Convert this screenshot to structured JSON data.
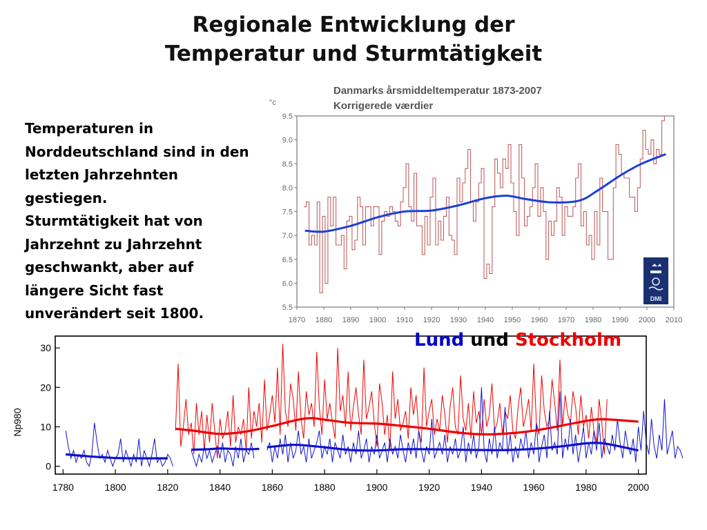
{
  "slide": {
    "title_line1": "Regionale Entwicklung der",
    "title_line2": "Temperatur und Sturmtätigkeit",
    "text_lines": [
      "Temperaturen in",
      "Norddeutschland sind in den",
      "letzten Jahrzehnten",
      "gestiegen.",
      "Sturmtätigkeit hat von",
      "Jahrzehnt zu Jahrzehnt",
      "geschwankt, aber auf",
      "längere Sicht fast",
      "unverändert seit 1800."
    ],
    "legend": {
      "part1": "Lund",
      "part2": " und ",
      "part3": "Stockholm",
      "color1": "#0000cc",
      "color3": "#ee0000"
    }
  },
  "chart_data": [
    {
      "type": "line",
      "title": "Danmarks årsmiddeltemperatur 1873-2007",
      "subtitle": "Korrigerede værdier",
      "ylabel": "°c",
      "xlim": [
        1870,
        2010
      ],
      "ylim": [
        5.5,
        9.5
      ],
      "xticks": [
        1870,
        1880,
        1890,
        1900,
        1910,
        1920,
        1930,
        1940,
        1950,
        1960,
        1970,
        1980,
        1990,
        2000,
        2010
      ],
      "yticks": [
        5.5,
        6.0,
        6.5,
        7.0,
        7.5,
        8.0,
        8.5,
        9.0,
        9.5
      ],
      "ytick_labels": [
        "5.5",
        "6.0",
        "6.5",
        "7.0",
        "7.5",
        "8.0",
        "8.5",
        "9.0",
        "9.5"
      ],
      "logo": "DMI",
      "series": [
        {
          "style": "step",
          "color": "#c06060",
          "x": [
            1873,
            1874,
            1875,
            1876,
            1877,
            1878,
            1879,
            1880,
            1881,
            1882,
            1883,
            1884,
            1885,
            1886,
            1887,
            1888,
            1889,
            1890,
            1891,
            1892,
            1893,
            1894,
            1895,
            1896,
            1897,
            1898,
            1899,
            1900,
            1901,
            1902,
            1903,
            1904,
            1905,
            1906,
            1907,
            1908,
            1909,
            1910,
            1911,
            1912,
            1913,
            1914,
            1915,
            1916,
            1917,
            1918,
            1919,
            1920,
            1921,
            1922,
            1923,
            1924,
            1925,
            1926,
            1927,
            1928,
            1929,
            1930,
            1931,
            1932,
            1933,
            1934,
            1935,
            1936,
            1937,
            1938,
            1939,
            1940,
            1941,
            1942,
            1943,
            1944,
            1945,
            1946,
            1947,
            1948,
            1949,
            1950,
            1951,
            1952,
            1953,
            1954,
            1955,
            1956,
            1957,
            1958,
            1959,
            1960,
            1961,
            1962,
            1963,
            1964,
            1965,
            1966,
            1967,
            1968,
            1969,
            1970,
            1971,
            1972,
            1973,
            1974,
            1975,
            1976,
            1977,
            1978,
            1979,
            1980,
            1981,
            1982,
            1983,
            1984,
            1985,
            1986,
            1987,
            1988,
            1989,
            1990,
            1991,
            1992,
            1993,
            1994,
            1995,
            1996,
            1997,
            1998,
            1999,
            2000,
            2001,
            2002,
            2003,
            2004,
            2005,
            2006,
            2007
          ],
          "values": [
            7.6,
            7.7,
            6.8,
            7.0,
            6.8,
            7.7,
            5.8,
            7.4,
            6.0,
            7.8,
            7.2,
            7.8,
            6.8,
            6.8,
            7.0,
            6.3,
            7.3,
            7.4,
            6.7,
            6.9,
            7.8,
            7.6,
            6.8,
            7.6,
            7.6,
            7.2,
            7.6,
            7.6,
            6.6,
            7.3,
            7.5,
            7.4,
            7.6,
            7.5,
            7.3,
            7.2,
            7.7,
            8.0,
            8.5,
            7.6,
            7.3,
            8.3,
            7.2,
            7.2,
            6.6,
            7.4,
            6.8,
            7.8,
            8.2,
            6.8,
            7.3,
            6.9,
            7.4,
            7.8,
            7.0,
            6.9,
            6.6,
            8.2,
            7.7,
            8.1,
            8.4,
            8.8,
            7.7,
            7.3,
            7.7,
            8.1,
            8.4,
            6.1,
            6.4,
            6.2,
            7.6,
            8.6,
            8.3,
            8.0,
            8.6,
            8.4,
            8.9,
            8.1,
            7.5,
            7.0,
            8.9,
            8.2,
            7.2,
            7.4,
            7.6,
            8.0,
            8.5,
            7.4,
            8.0,
            7.5,
            6.5,
            7.3,
            7.0,
            7.3,
            8.0,
            7.8,
            7.0,
            7.6,
            7.4,
            7.4,
            7.6,
            8.2,
            8.5,
            7.2,
            7.5,
            6.8,
            7.0,
            6.5,
            7.5,
            6.8,
            8.2,
            7.5,
            7.5,
            6.5,
            6.5,
            8.0,
            8.9,
            8.7,
            8.3,
            8.2,
            8.2,
            7.8,
            7.8,
            7.5,
            8.0,
            8.6,
            9.2,
            8.8,
            8.7,
            9.0,
            8.5,
            8.8,
            8.7,
            9.4,
            9.5
          ]
        },
        {
          "style": "smooth",
          "color": "#1a3fd6",
          "x": [
            1873,
            1880,
            1890,
            1900,
            1910,
            1920,
            1930,
            1940,
            1948,
            1955,
            1965,
            1975,
            1982,
            1990,
            1998,
            2007
          ],
          "values": [
            7.1,
            7.08,
            7.2,
            7.38,
            7.5,
            7.52,
            7.63,
            7.78,
            7.83,
            7.76,
            7.69,
            7.73,
            7.95,
            8.25,
            8.5,
            8.7
          ]
        }
      ]
    },
    {
      "type": "line",
      "ylabel": "Np980",
      "xlim": [
        1777,
        2003
      ],
      "ylim": [
        -2,
        33
      ],
      "xticks": [
        1780,
        1800,
        1820,
        1840,
        1860,
        1880,
        1900,
        1920,
        1940,
        1960,
        1980,
        2000
      ],
      "yticks": [
        0,
        10,
        20,
        30
      ],
      "series": [
        {
          "name": "Stockholm",
          "color": "#ee0000",
          "style": "thin",
          "start": 1823,
          "values": [
            9,
            26,
            5,
            10,
            17,
            8,
            11,
            3,
            16,
            8,
            14,
            4,
            13,
            6,
            16,
            9,
            2,
            12,
            7,
            9,
            14,
            5,
            18,
            6,
            10,
            8,
            12,
            4,
            20,
            7,
            14,
            10,
            16,
            6,
            22,
            9,
            13,
            18,
            11,
            25,
            8,
            31,
            14,
            10,
            21,
            17,
            9,
            24,
            12,
            7,
            19,
            13,
            16,
            10,
            29,
            15,
            8,
            22,
            12,
            16,
            11,
            7,
            30,
            14,
            18,
            10,
            24,
            9,
            15,
            20,
            13,
            8,
            27,
            12,
            15,
            19,
            11,
            5,
            21,
            16,
            8,
            13,
            4,
            24,
            12,
            17,
            9,
            11,
            14,
            7,
            20,
            13,
            18,
            9,
            6,
            25,
            10,
            14,
            17,
            8,
            12,
            9,
            18,
            13,
            6,
            15,
            20,
            10,
            8,
            23,
            12,
            9,
            16,
            7,
            19,
            11,
            14,
            8,
            17,
            10,
            13,
            21,
            9,
            11,
            16,
            8,
            14,
            12,
            18,
            9,
            7,
            15,
            20,
            10,
            13,
            17,
            9,
            26,
            11,
            8,
            23,
            14,
            10,
            12,
            22,
            16,
            9,
            27,
            10,
            18,
            13,
            11,
            19,
            15,
            8,
            18,
            10,
            13,
            7,
            15,
            9,
            6,
            17,
            11,
            3,
            17
          ]
        },
        {
          "name": "Lund",
          "color": "#1010cc",
          "style": "thin",
          "segments": [
            {
              "start": 1781,
              "values": [
                9,
                5,
                2,
                4,
                1,
                3,
                2,
                4,
                1,
                0,
                3,
                11,
                6,
                2,
                3,
                1,
                4,
                2,
                0,
                2,
                3,
                7,
                1,
                4,
                2,
                0,
                3,
                1,
                7,
                0,
                4,
                2,
                0,
                3,
                7,
                1,
                2,
                0,
                1,
                3,
                2,
                0
              ]
            },
            {
              "start": 1829,
              "values": [
                4,
                2,
                0,
                3,
                1,
                5,
                2,
                4,
                1,
                3,
                5,
                2,
                6,
                1,
                4,
                3,
                0,
                5,
                2,
                7,
                1,
                4,
                3,
                6,
                2
              ]
            },
            {
              "start": 1858,
              "values": [
                4,
                6,
                1,
                5,
                2,
                7,
                3,
                8,
                1,
                6,
                2,
                4,
                9,
                3,
                5,
                1,
                7,
                2,
                4,
                6,
                9,
                2,
                5,
                3,
                7,
                1,
                6,
                4,
                2,
                8,
                3,
                5,
                1,
                6,
                3,
                9,
                2,
                4,
                7,
                1,
                5,
                3,
                8,
                2,
                4,
                6,
                1,
                7,
                3,
                5,
                2,
                8,
                4,
                1,
                6,
                3,
                7,
                2,
                9,
                4,
                1,
                5,
                3,
                12,
                2,
                4,
                6,
                3,
                8,
                1,
                5,
                3,
                7,
                2,
                4,
                10,
                1,
                6,
                3,
                8,
                2,
                5,
                20,
                4,
                1,
                7,
                3,
                10,
                2,
                6,
                4,
                15,
                3,
                8,
                1,
                5,
                2,
                7,
                4,
                9,
                2,
                6,
                3,
                11,
                1,
                5,
                8,
                2,
                14,
                4,
                6,
                3,
                19,
                2,
                7,
                4,
                12,
                3,
                8,
                1,
                5,
                10,
                2,
                6,
                3,
                9,
                4,
                11,
                2,
                7,
                5,
                3,
                8,
                4,
                12,
                6,
                2,
                9,
                5,
                3,
                7,
                1,
                10,
                4,
                14,
                6,
                3,
                12,
                5,
                2,
                8,
                4,
                17,
                3,
                6,
                9,
                2,
                5,
                4,
                2
              ]
            }
          ]
        },
        {
          "name": "Stockholm smooth",
          "color": "#ee0000",
          "style": "smooth",
          "x": [
            1823,
            1830,
            1840,
            1850,
            1860,
            1870,
            1875,
            1880,
            1890,
            1900,
            1910,
            1920,
            1930,
            1940,
            1950,
            1960,
            1970,
            1980,
            1985,
            1990,
            2000
          ],
          "values": [
            9.5,
            9.0,
            8.2,
            8.8,
            10.2,
            11.8,
            12.2,
            11.8,
            11.0,
            10.8,
            10.2,
            9.5,
            8.6,
            8.1,
            8.3,
            9.0,
            10.2,
            11.5,
            11.9,
            11.8,
            11.3
          ]
        },
        {
          "name": "Lund smooth",
          "color": "#1010cc",
          "style": "smooth",
          "segments": [
            {
              "x": [
                1781,
                1790,
                1800,
                1810,
                1820
              ],
              "values": [
                3.0,
                2.5,
                2.1,
                2.0,
                2.0
              ]
            },
            {
              "x": [
                1829,
                1835,
                1840,
                1845,
                1850,
                1855
              ],
              "values": [
                4.2,
                4.3,
                4.5,
                4.4,
                4.3,
                4.4
              ]
            },
            {
              "x": [
                1858,
                1865,
                1870,
                1880,
                1890,
                1900,
                1910,
                1920,
                1930,
                1940,
                1950,
                1960,
                1970,
                1980,
                1985,
                1990,
                2000
              ],
              "values": [
                4.8,
                5.3,
                5.4,
                4.8,
                4.1,
                4.0,
                4.3,
                4.3,
                4.2,
                4.1,
                4.1,
                4.4,
                5.0,
                5.8,
                5.9,
                5.4,
                4.0
              ]
            }
          ]
        }
      ]
    }
  ]
}
